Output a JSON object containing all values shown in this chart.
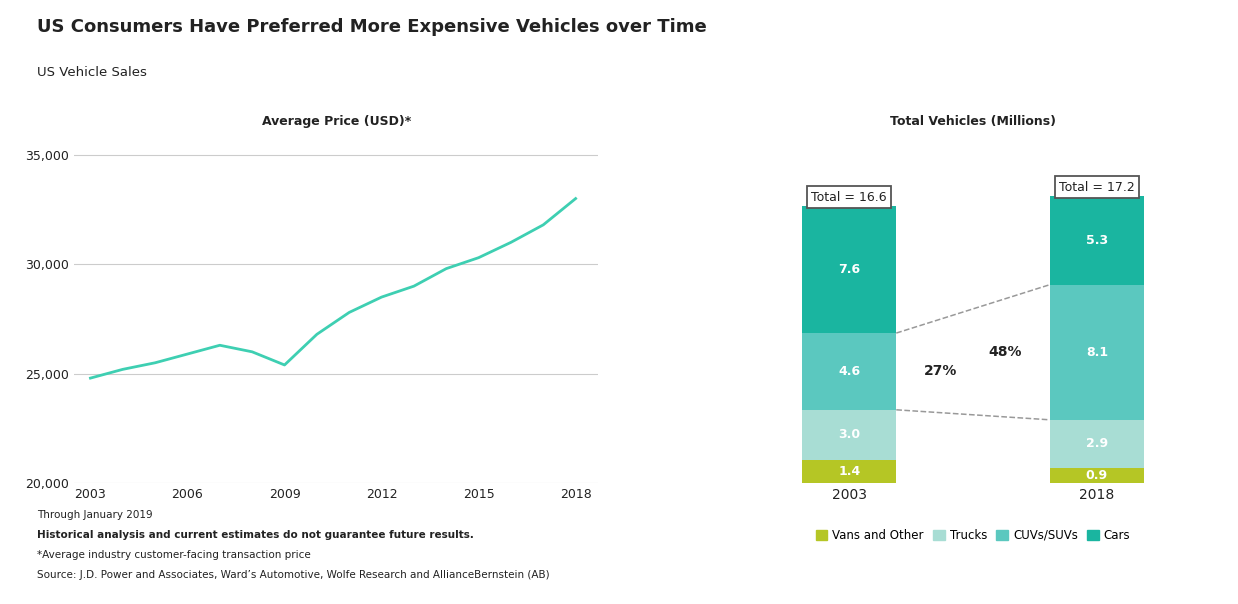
{
  "title": "US Consumers Have Preferred More Expensive Vehicles over Time",
  "subtitle": "US Vehicle Sales",
  "left_chart_title": "Average Price (USD)*",
  "right_chart_title": "Total Vehicles (Millions)",
  "line_x": [
    2003,
    2004,
    2005,
    2006,
    2007,
    2008,
    2009,
    2010,
    2011,
    2012,
    2013,
    2014,
    2015,
    2016,
    2017,
    2018
  ],
  "line_y": [
    24800,
    25200,
    25500,
    25900,
    26300,
    26000,
    25400,
    26800,
    27800,
    28500,
    29000,
    29800,
    30300,
    31000,
    31800,
    33000
  ],
  "line_color": "#3ecfb2",
  "ylim_left": [
    20000,
    36000
  ],
  "yticks_left": [
    20000,
    25000,
    30000,
    35000
  ],
  "bar_years": [
    "2003",
    "2018"
  ],
  "bar_data_ordered": [
    {
      "label": "Vans and Other",
      "values": [
        1.4,
        0.9
      ],
      "color": "#b5c625"
    },
    {
      "label": "Trucks",
      "values": [
        3.0,
        2.9
      ],
      "color": "#a8ddd4"
    },
    {
      "label": "CUVs/SUVs",
      "values": [
        4.6,
        8.1
      ],
      "color": "#5bc8bf"
    },
    {
      "label": "Cars",
      "values": [
        7.6,
        5.3
      ],
      "color": "#1ab5a0"
    }
  ],
  "totals": {
    "2003": "16.6",
    "2018": "17.2"
  },
  "footnote_lines": [
    "Through January 2019",
    "Historical analysis and current estimates do not guarantee future results.",
    "*Average industry customer-facing transaction price",
    "Source: J.D. Power and Associates, Ward’s Automotive, Wolfe Research and AllianceBernstein (AB)"
  ],
  "background_color": "#ffffff",
  "grid_color": "#cccccc",
  "text_color": "#222222"
}
